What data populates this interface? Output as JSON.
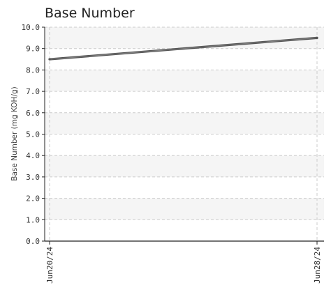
{
  "chart_data": {
    "type": "line",
    "title": "Base Number",
    "xlabel": "",
    "ylabel": "Base Number (mg KOH/g)",
    "x": [
      "Jun20/24",
      "Jun28/24"
    ],
    "series": [
      {
        "values": [
          8.5,
          9.5
        ]
      }
    ],
    "ylim": [
      0,
      10
    ],
    "yticks": [
      "0.0",
      "1.0",
      "2.0",
      "3.0",
      "4.0",
      "5.0",
      "6.0",
      "7.0",
      "8.0",
      "9.0",
      "10.0"
    ],
    "grid": true,
    "legend": "none",
    "colors": {
      "line": "#555555",
      "band": "#f5f5f5",
      "grid": "#cccccc",
      "axis": "#222222"
    }
  }
}
